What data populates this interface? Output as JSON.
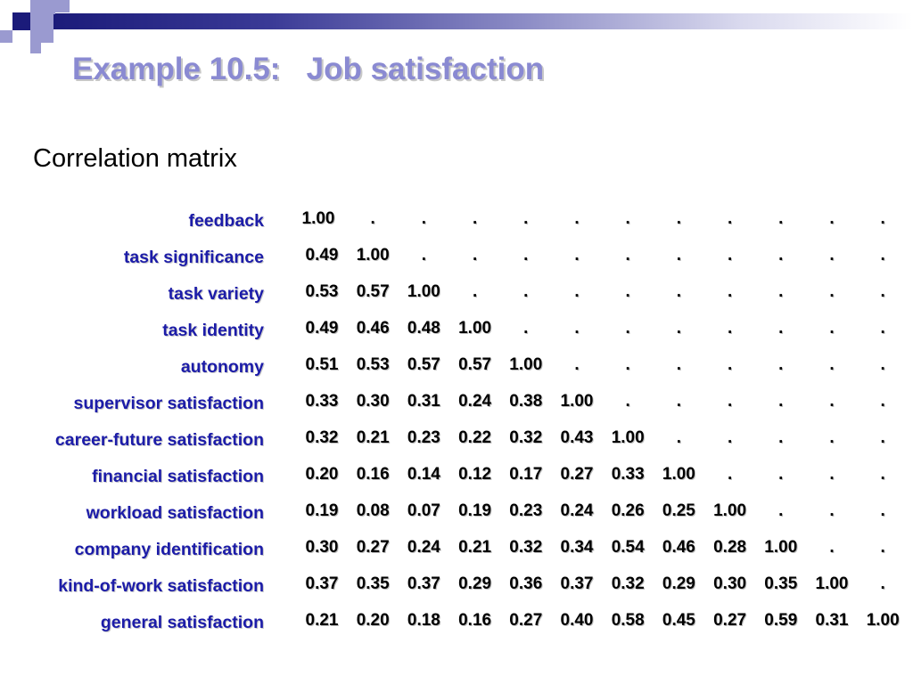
{
  "title": "Example 10.5:   Job satisfaction",
  "subtitle": "Correlation matrix",
  "variables": [
    "feedback",
    "task significance",
    "task variety",
    "task identity",
    "autonomy",
    "supervisor satisfaction",
    "career-future satisfaction",
    "financial satisfaction",
    "workload satisfaction",
    "company identification",
    "kind-of-work satisfaction",
    "general satisfaction"
  ],
  "matrix": [
    [
      "1.00",
      ".",
      ".",
      ".",
      ".",
      ".",
      ".",
      ".",
      ".",
      ".",
      ".",
      "."
    ],
    [
      "0.49",
      "1.00",
      ".",
      ".",
      ".",
      ".",
      ".",
      ".",
      ".",
      ".",
      ".",
      "."
    ],
    [
      "0.53",
      "0.57",
      "1.00",
      ".",
      ".",
      ".",
      ".",
      ".",
      ".",
      ".",
      ".",
      "."
    ],
    [
      "0.49",
      "0.46",
      "0.48",
      "1.00",
      ".",
      ".",
      ".",
      ".",
      ".",
      ".",
      ".",
      "."
    ],
    [
      "0.51",
      "0.53",
      "0.57",
      "0.57",
      "1.00",
      ".",
      ".",
      ".",
      ".",
      ".",
      ".",
      "."
    ],
    [
      "0.33",
      "0.30",
      "0.31",
      "0.24",
      "0.38",
      "1.00",
      ".",
      ".",
      ".",
      ".",
      ".",
      "."
    ],
    [
      "0.32",
      "0.21",
      "0.23",
      "0.22",
      "0.32",
      "0.43",
      "1.00",
      ".",
      ".",
      ".",
      ".",
      "."
    ],
    [
      "0.20",
      "0.16",
      "0.14",
      "0.12",
      "0.17",
      "0.27",
      "0.33",
      "1.00",
      ".",
      ".",
      ".",
      "."
    ],
    [
      "0.19",
      "0.08",
      "0.07",
      "0.19",
      "0.23",
      "0.24",
      "0.26",
      "0.25",
      "1.00",
      ".",
      ".",
      "."
    ],
    [
      "0.30",
      "0.27",
      "0.24",
      "0.21",
      "0.32",
      "0.34",
      "0.54",
      "0.46",
      "0.28",
      "1.00",
      ".",
      "."
    ],
    [
      "0.37",
      "0.35",
      "0.37",
      "0.29",
      "0.36",
      "0.37",
      "0.32",
      "0.29",
      "0.30",
      "0.35",
      "1.00",
      "."
    ],
    [
      "0.21",
      "0.20",
      "0.18",
      "0.16",
      "0.27",
      "0.40",
      "0.58",
      "0.45",
      "0.27",
      "0.59",
      "0.31",
      "1.00"
    ]
  ],
  "colors": {
    "title": "#8a8ad2",
    "labels": "#1c1ca8",
    "bar_dark": "#1b1b7a",
    "bar_light": "#9a9ad0"
  }
}
